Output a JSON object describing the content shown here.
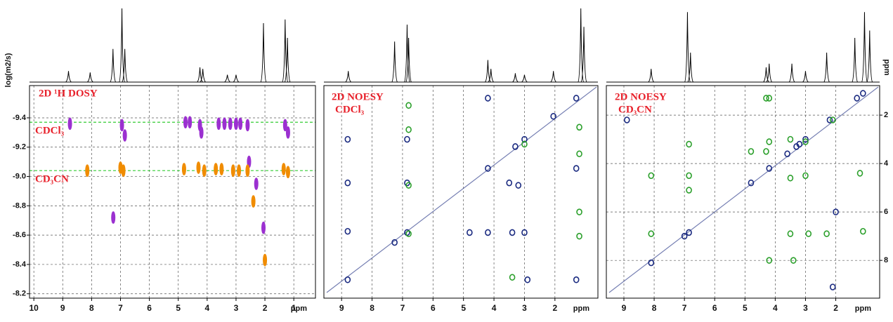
{
  "chart_data": [
    {
      "type": "scatter",
      "title": "2D ¹H DOSY",
      "ylabel": "log(m2/s)",
      "xlabel": "ppm",
      "xlim": [
        10.15,
        0.25
      ],
      "xticks": [
        10,
        9,
        8,
        7,
        6,
        5,
        4,
        3,
        2,
        1
      ],
      "ylim": [
        -9.62,
        -8.17
      ],
      "yticks": [
        -9.4,
        -9.2,
        {
          "value": -9,
          "label": "-9.0"
        },
        -8.8,
        -8.6,
        -8.4,
        -8.2
      ],
      "grid": true,
      "levels": [
        {
          "name": "CDCl₃",
          "value": -9.37,
          "color": "#33cc33"
        },
        {
          "name": "CD₃CN",
          "value": -9.04,
          "color": "#33cc33"
        }
      ],
      "spectrum": {
        "x": [
          8.8,
          8.05,
          7.26,
          6.95,
          6.85,
          4.25,
          4.15,
          3.3,
          3.0,
          2.05,
          1.3,
          1.22
        ],
        "values": [
          15,
          13,
          45,
          100,
          45,
          20,
          18,
          10,
          10,
          80,
          85,
          60
        ]
      },
      "peaks": [
        {
          "color": "#9b30d0",
          "x": [
            8.75,
            4.75,
            4.6,
            4.25,
            4.2,
            3.6,
            3.4,
            3.2,
            3.0,
            2.85,
            2.6,
            1.3,
            1.2,
            6.95,
            6.85,
            2.55,
            2.3,
            2.05,
            7.25
          ],
          "y": [
            -9.36,
            -9.37,
            -9.37,
            -9.35,
            -9.3,
            -9.36,
            -9.36,
            -9.36,
            -9.36,
            -9.36,
            -9.35,
            -9.35,
            -9.3,
            -9.35,
            -9.28,
            -9.1,
            -8.95,
            -8.65,
            -8.72
          ]
        },
        {
          "color": "#f08c00",
          "x": [
            8.15,
            7.0,
            6.9,
            4.8,
            4.3,
            4.1,
            3.7,
            3.5,
            3.1,
            2.9,
            2.6,
            1.35,
            1.2,
            2.4,
            2.0
          ],
          "y": [
            -9.04,
            -9.06,
            -9.04,
            -9.05,
            -9.06,
            -9.04,
            -9.05,
            -9.05,
            -9.04,
            -9.04,
            -9.04,
            -9.05,
            -9.03,
            -8.83,
            -8.43
          ]
        }
      ]
    },
    {
      "type": "scatter",
      "title": "2D NOESY",
      "subtitle": "CDCl₃",
      "xlabel": "ppm",
      "xlim": [
        9.58,
        0.59
      ],
      "xticks": [
        9,
        8,
        7,
        6,
        5,
        4,
        3,
        2
      ],
      "ylim": [
        0.78,
        9.56
      ],
      "grid": true,
      "spectrum": {
        "x": [
          8.78,
          7.26,
          6.85,
          6.8,
          4.2,
          4.1,
          3.3,
          3.0,
          2.05,
          1.15,
          1.05
        ],
        "values": [
          15,
          55,
          78,
          60,
          30,
          18,
          12,
          10,
          15,
          100,
          75
        ]
      },
      "peaks": [
        {
          "color": "#1a2a80",
          "x": [
            8.8,
            7.26,
            6.85,
            4.2,
            3.3,
            3.0,
            2.05,
            1.3,
            8.8,
            8.8,
            8.8,
            6.85,
            6.85,
            4.2,
            4.8,
            4.2,
            3.4,
            3.0,
            1.3,
            1.3,
            3.5,
            2.9,
            3.2
          ],
          "y": [
            8.8,
            7.26,
            6.85,
            4.2,
            3.3,
            3.0,
            2.05,
            1.3,
            3.0,
            4.8,
            6.8,
            3.0,
            4.8,
            1.3,
            6.85,
            6.85,
            6.85,
            6.85,
            4.2,
            8.8,
            4.8,
            8.8,
            4.9
          ]
        },
        {
          "color": "#2ca02c",
          "x": [
            6.8,
            6.8,
            6.8,
            1.2,
            1.2,
            1.2,
            3.0,
            3.4,
            6.8,
            1.2
          ],
          "y": [
            1.6,
            2.6,
            4.9,
            2.5,
            6.0,
            7.0,
            3.2,
            8.7,
            6.9,
            3.6
          ]
        }
      ]
    },
    {
      "type": "scatter",
      "title": "2D NOESY",
      "subtitle": "CD₃CN",
      "xlabel": "ppm",
      "ylabel": "ppm",
      "xlim": [
        9.58,
        0.55
      ],
      "xticks": [
        9,
        8,
        7,
        6,
        5,
        4,
        3,
        2
      ],
      "ylim": [
        0.78,
        9.56
      ],
      "yticks": [
        2,
        4,
        6,
        8
      ],
      "grid": true,
      "spectrum": {
        "x": [
          8.1,
          6.9,
          6.8,
          4.3,
          4.2,
          3.45,
          3.0,
          2.3,
          1.37,
          1.05,
          0.88
        ],
        "values": [
          18,
          95,
          40,
          20,
          25,
          25,
          15,
          40,
          60,
          95,
          70
        ]
      },
      "peaks": [
        {
          "color": "#1a2a80",
          "x": [
            8.9,
            8.1,
            7.0,
            6.85,
            4.8,
            4.2,
            3.6,
            3.2,
            2.2,
            1.3,
            1.1,
            2.1,
            2.0,
            3.3,
            3.0
          ],
          "y": [
            2.2,
            8.1,
            7.0,
            6.85,
            4.8,
            4.2,
            3.6,
            3.2,
            2.2,
            1.3,
            1.1,
            9.1,
            6.0,
            3.3,
            3.0
          ]
        },
        {
          "color": "#2ca02c",
          "x": [
            4.3,
            4.2,
            8.1,
            8.1,
            6.85,
            6.85,
            6.85,
            4.8,
            4.3,
            4.2,
            3.5,
            3.0,
            3.5,
            3.0,
            3.5,
            2.9,
            2.3,
            2.1,
            1.2,
            1.1,
            4.2,
            3.4
          ],
          "y": [
            1.3,
            1.3,
            4.5,
            6.9,
            3.2,
            4.5,
            5.1,
            3.5,
            3.5,
            3.1,
            3.0,
            3.1,
            4.6,
            4.5,
            6.9,
            6.9,
            6.9,
            2.2,
            4.4,
            6.8,
            8.0,
            8.0
          ]
        }
      ]
    }
  ]
}
